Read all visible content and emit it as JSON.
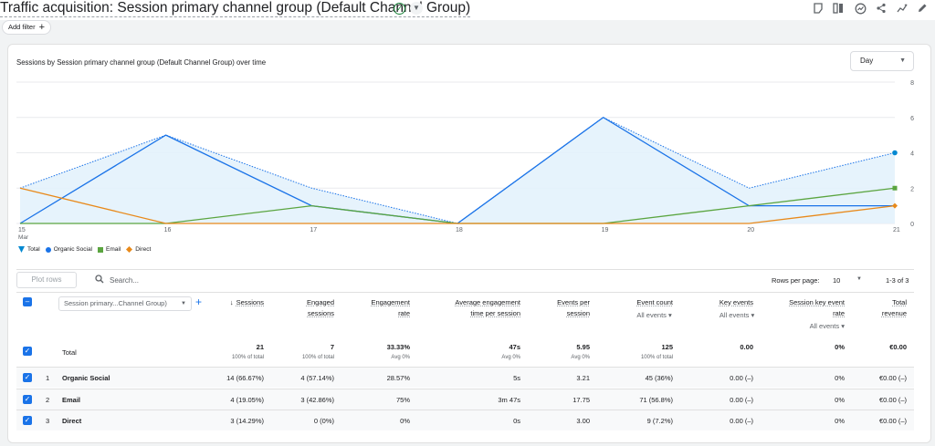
{
  "header": {
    "title": "Traffic acquisition: Session primary channel group (Default Channel Group)",
    "add_filter_label": "Add filter",
    "tools": [
      "insights-note-icon",
      "compare-icon",
      "customize-report-icon",
      "share-icon",
      "insights-icon",
      "edit-icon"
    ]
  },
  "chart": {
    "title": "Sessions by Session primary channel group (Default Channel Group) over time",
    "granularity": "Day"
  },
  "chart_data": {
    "type": "line",
    "x": [
      "15 Mar",
      "16",
      "17",
      "18",
      "19",
      "20",
      "21"
    ],
    "x_labels": [
      "15",
      "16",
      "17",
      "18",
      "19",
      "20",
      "21"
    ],
    "x_sublabel": "Mar",
    "ylim": [
      0,
      8
    ],
    "y_ticks": [
      "0",
      "2",
      "4",
      "6",
      "8"
    ],
    "series": [
      {
        "name": "Total",
        "color": "#1a73e8",
        "style": "dotted-area",
        "values": [
          2,
          5,
          2,
          0,
          6,
          2,
          4
        ]
      },
      {
        "name": "Organic Social",
        "color": "#1a73e8",
        "values": [
          0,
          5,
          1,
          0,
          6,
          1,
          1
        ]
      },
      {
        "name": "Email",
        "color": "#5ba540",
        "values": [
          0,
          0,
          1,
          0,
          0,
          1,
          2
        ]
      },
      {
        "name": "Direct",
        "color": "#e8891a",
        "values": [
          2,
          0,
          0,
          0,
          0,
          0,
          1
        ]
      }
    ],
    "grid": true,
    "legend_position": "bottom-left"
  },
  "table_controls": {
    "plot_rows_label": "Plot rows",
    "search_placeholder": "Search...",
    "rows_per_page_label": "Rows per page:",
    "rows_per_page_value": "10",
    "range_label": "1-3 of 3"
  },
  "table": {
    "dimension_select": "Session primary...Channel Group)",
    "columns": [
      {
        "l1": "Sessions",
        "l2": "",
        "sub": ""
      },
      {
        "l1": "Engaged",
        "l2": "sessions",
        "sub": ""
      },
      {
        "l1": "Engagement",
        "l2": "rate",
        "sub": ""
      },
      {
        "l1": "Average engagement",
        "l2": "time per session",
        "sub": ""
      },
      {
        "l1": "Events per",
        "l2": "session",
        "sub": ""
      },
      {
        "l1": "Event count",
        "l2": "",
        "sub": "All events"
      },
      {
        "l1": "Key events",
        "l2": "",
        "sub": "All events"
      },
      {
        "l1": "Session key event",
        "l2": "rate",
        "sub": "All events"
      },
      {
        "l1": "Total",
        "l2": "revenue",
        "sub": ""
      }
    ],
    "total": {
      "label": "Total",
      "values": [
        "21",
        "7",
        "33.33%",
        "47s",
        "5.95",
        "125",
        "0.00",
        "0%",
        "€0.00"
      ],
      "subs": [
        "100% of total",
        "100% of total",
        "Avg 0%",
        "Avg 0%",
        "Avg 0%",
        "100% of total",
        "",
        "",
        ""
      ]
    },
    "rows": [
      {
        "index": "1",
        "name": "Organic Social",
        "values": [
          "14 (66.67%)",
          "4 (57.14%)",
          "28.57%",
          "5s",
          "3.21",
          "45 (36%)",
          "0.00 (–)",
          "0%",
          "€0.00 (–)"
        ]
      },
      {
        "index": "2",
        "name": "Email",
        "values": [
          "4 (19.05%)",
          "3 (42.86%)",
          "75%",
          "3m 47s",
          "17.75",
          "71 (56.8%)",
          "0.00 (–)",
          "0%",
          "€0.00 (–)"
        ]
      },
      {
        "index": "3",
        "name": "Direct",
        "values": [
          "3 (14.29%)",
          "0 (0%)",
          "0%",
          "0s",
          "3.00",
          "9 (7.2%)",
          "0.00 (–)",
          "0%",
          "€0.00 (–)"
        ]
      }
    ]
  }
}
